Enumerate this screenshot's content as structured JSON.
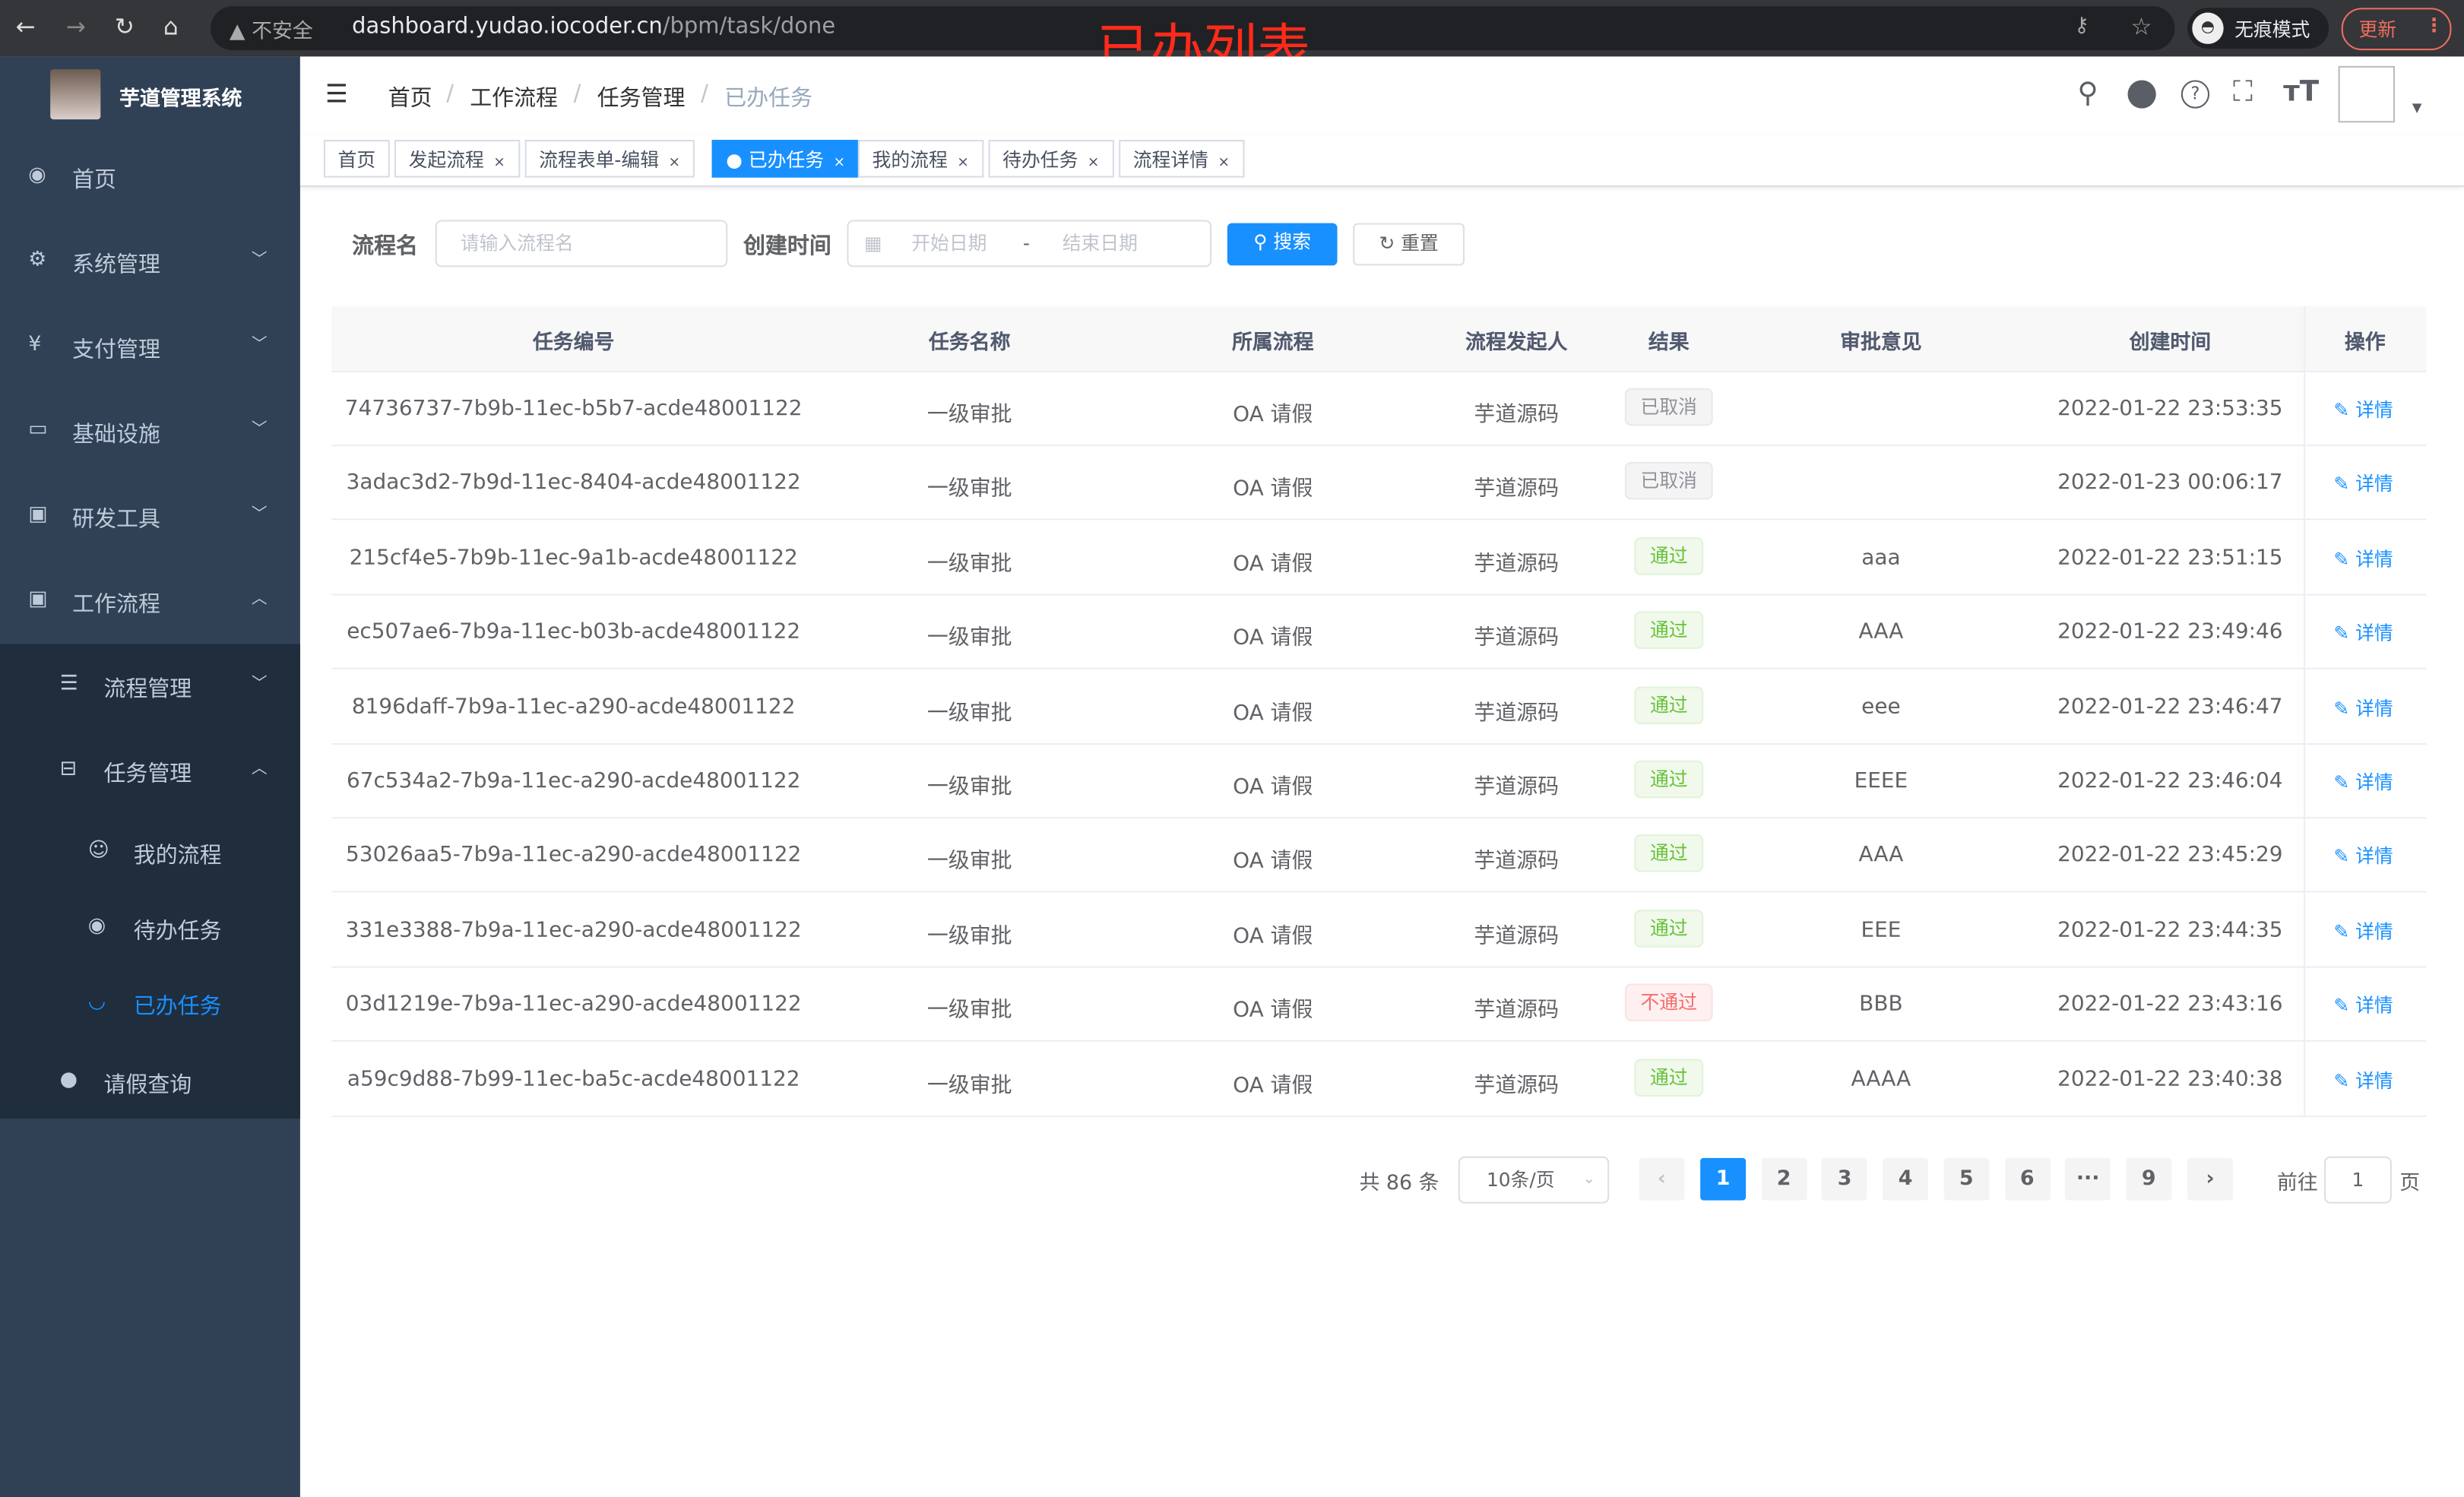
{
  "browser": {
    "security_label": "不安全",
    "url_host": "dashboard.yudao.iocoder.cn",
    "url_path": "/bpm/task/done",
    "incognito_label": "无痕模式",
    "update_label": "更新"
  },
  "overlay_title": "已办列表",
  "sidebar": {
    "brand": "芋道管理系统",
    "items": [
      {
        "label": "首页",
        "icon": "dashboard-icon"
      },
      {
        "label": "系统管理",
        "icon": "gear-icon"
      },
      {
        "label": "支付管理",
        "icon": "yen-icon"
      },
      {
        "label": "基础设施",
        "icon": "monitor-icon"
      },
      {
        "label": "研发工具",
        "icon": "toolbox-icon"
      },
      {
        "label": "工作流程",
        "icon": "toolbox-icon"
      }
    ],
    "sub_items": [
      {
        "label": "流程管理",
        "icon": "list-icon"
      },
      {
        "label": "任务管理",
        "icon": "tree-icon"
      }
    ],
    "task_items": [
      {
        "label": "我的流程",
        "icon": "user-circle-icon"
      },
      {
        "label": "待办任务",
        "icon": "eye-icon"
      },
      {
        "label": "已办任务",
        "icon": "eye-closed-icon"
      }
    ],
    "leave_item": {
      "label": "请假查询",
      "icon": "user-icon"
    }
  },
  "breadcrumb": [
    "首页",
    "工作流程",
    "任务管理",
    "已办任务"
  ],
  "tags": [
    {
      "label": "首页",
      "closable": false,
      "active": false
    },
    {
      "label": "发起流程",
      "closable": true,
      "active": false
    },
    {
      "label": "流程表单-编辑",
      "closable": true,
      "active": false
    },
    {
      "label": "已办任务",
      "closable": true,
      "active": true
    },
    {
      "label": "我的流程",
      "closable": true,
      "active": false
    },
    {
      "label": "待办任务",
      "closable": true,
      "active": false
    },
    {
      "label": "流程详情",
      "closable": true,
      "active": false
    }
  ],
  "search": {
    "name_label": "流程名",
    "name_placeholder": "请输入流程名",
    "time_label": "创建时间",
    "start_placeholder": "开始日期",
    "separator": "-",
    "end_placeholder": "结束日期",
    "search_button": "搜索",
    "reset_button": "重置"
  },
  "table": {
    "columns": [
      "任务编号",
      "任务名称",
      "所属流程",
      "流程发起人",
      "结果",
      "审批意见",
      "创建时间",
      "操作"
    ],
    "rows": [
      {
        "id": "74736737-7b9b-11ec-b5b7-acde48001122",
        "name": "一级审批",
        "process": "OA 请假",
        "starter": "芋道源码",
        "result": "已取消",
        "status": "info",
        "comment": "",
        "time": "2022-01-22 23:53:35",
        "action": "详情"
      },
      {
        "id": "3adac3d2-7b9d-11ec-8404-acde48001122",
        "name": "一级审批",
        "process": "OA 请假",
        "starter": "芋道源码",
        "result": "已取消",
        "status": "info",
        "comment": "",
        "time": "2022-01-23 00:06:17",
        "action": "详情"
      },
      {
        "id": "215cf4e5-7b9b-11ec-9a1b-acde48001122",
        "name": "一级审批",
        "process": "OA 请假",
        "starter": "芋道源码",
        "result": "通过",
        "status": "success",
        "comment": "aaa",
        "time": "2022-01-22 23:51:15",
        "action": "详情"
      },
      {
        "id": "ec507ae6-7b9a-11ec-b03b-acde48001122",
        "name": "一级审批",
        "process": "OA 请假",
        "starter": "芋道源码",
        "result": "通过",
        "status": "success",
        "comment": "AAA",
        "time": "2022-01-22 23:49:46",
        "action": "详情"
      },
      {
        "id": "8196daff-7b9a-11ec-a290-acde48001122",
        "name": "一级审批",
        "process": "OA 请假",
        "starter": "芋道源码",
        "result": "通过",
        "status": "success",
        "comment": "eee",
        "time": "2022-01-22 23:46:47",
        "action": "详情"
      },
      {
        "id": "67c534a2-7b9a-11ec-a290-acde48001122",
        "name": "一级审批",
        "process": "OA 请假",
        "starter": "芋道源码",
        "result": "通过",
        "status": "success",
        "comment": "EEEE",
        "time": "2022-01-22 23:46:04",
        "action": "详情"
      },
      {
        "id": "53026aa5-7b9a-11ec-a290-acde48001122",
        "name": "一级审批",
        "process": "OA 请假",
        "starter": "芋道源码",
        "result": "通过",
        "status": "success",
        "comment": "AAA",
        "time": "2022-01-22 23:45:29",
        "action": "详情"
      },
      {
        "id": "331e3388-7b9a-11ec-a290-acde48001122",
        "name": "一级审批",
        "process": "OA 请假",
        "starter": "芋道源码",
        "result": "通过",
        "status": "success",
        "comment": "EEE",
        "time": "2022-01-22 23:44:35",
        "action": "详情"
      },
      {
        "id": "03d1219e-7b9a-11ec-a290-acde48001122",
        "name": "一级审批",
        "process": "OA 请假",
        "starter": "芋道源码",
        "result": "不通过",
        "status": "danger",
        "comment": "BBB",
        "time": "2022-01-22 23:43:16",
        "action": "详情"
      },
      {
        "id": "a59c9d88-7b99-11ec-ba5c-acde48001122",
        "name": "一级审批",
        "process": "OA 请假",
        "starter": "芋道源码",
        "result": "通过",
        "status": "success",
        "comment": "AAAA",
        "time": "2022-01-22 23:40:38",
        "action": "详情"
      }
    ]
  },
  "pagination": {
    "total": "共 86 条",
    "page_size": "10条/页",
    "pages": [
      "1",
      "2",
      "3",
      "4",
      "5",
      "6",
      "···",
      "9"
    ],
    "current": "1",
    "goto_prefix": "前往",
    "goto_value": "1",
    "goto_suffix": "页"
  },
  "colors": {
    "primary": "#1890ff",
    "sidebar": "#304156",
    "submenu": "#1f2d3d",
    "success": "#67c23a",
    "danger": "#f56c6c"
  }
}
